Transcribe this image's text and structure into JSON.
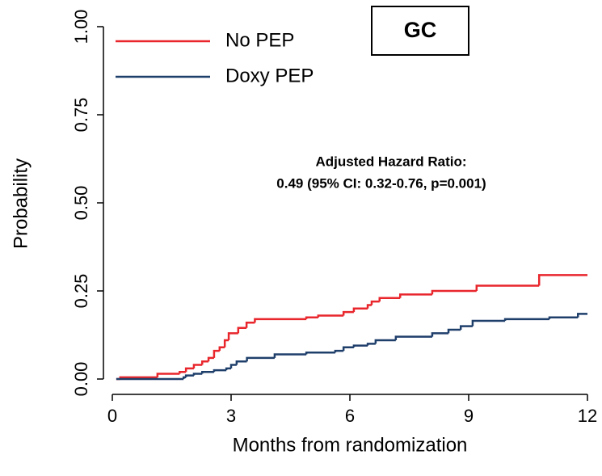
{
  "chart_data": {
    "type": "step",
    "box_label": "GC",
    "annotations": [
      {
        "text": "Adjusted Hazard Ratio:",
        "color": "#1f3f6b"
      },
      {
        "text": "0.49 (95% CI: 0.32-0.76, p=0.001)",
        "color": "#e8262c"
      }
    ],
    "xlabel": "Months from randomization",
    "ylabel": "Probability",
    "xlim": [
      0,
      12
    ],
    "ylim": [
      0,
      1
    ],
    "xticks": [
      0,
      3,
      6,
      9,
      12
    ],
    "yticks": [
      {
        "value": 0,
        "label": "0.00"
      },
      {
        "value": 0.25,
        "label": "0.25"
      },
      {
        "value": 0.5,
        "label": "0.50"
      },
      {
        "value": 0.75,
        "label": "0.75"
      },
      {
        "value": 1,
        "label": "1.00"
      }
    ],
    "legend": "top-left",
    "series": [
      {
        "name": "No PEP",
        "color": "#e8262c",
        "x": [
          0.1,
          0.2,
          1.14,
          1.7,
          1.86,
          2.06,
          2.27,
          2.43,
          2.57,
          2.71,
          2.84,
          2.94,
          3.18,
          3.39,
          3.6,
          4.9,
          5.2,
          5.84,
          6.1,
          6.45,
          6.55,
          6.75,
          7.27,
          8.08,
          9.2,
          10.78,
          12
        ],
        "values": [
          0,
          0.005,
          0.015,
          0.02,
          0.03,
          0.04,
          0.05,
          0.06,
          0.08,
          0.09,
          0.11,
          0.13,
          0.145,
          0.16,
          0.17,
          0.175,
          0.18,
          0.19,
          0.2,
          0.21,
          0.22,
          0.23,
          0.24,
          0.25,
          0.265,
          0.295,
          0.295
        ]
      },
      {
        "name": "Doxy PEP",
        "color": "#1f3f6b",
        "x": [
          0.1,
          1.8,
          1.86,
          2.06,
          2.27,
          2.57,
          2.88,
          3.0,
          3.14,
          3.4,
          4.1,
          4.9,
          5.63,
          5.84,
          6.1,
          6.45,
          6.65,
          7.16,
          8.08,
          8.49,
          8.8,
          9.1,
          9.92,
          11.04,
          11.76,
          12
        ],
        "values": [
          0,
          0.005,
          0.01,
          0.015,
          0.02,
          0.025,
          0.03,
          0.04,
          0.05,
          0.06,
          0.07,
          0.075,
          0.08,
          0.09,
          0.095,
          0.1,
          0.11,
          0.12,
          0.13,
          0.14,
          0.15,
          0.165,
          0.17,
          0.175,
          0.185,
          0.185
        ]
      }
    ]
  }
}
